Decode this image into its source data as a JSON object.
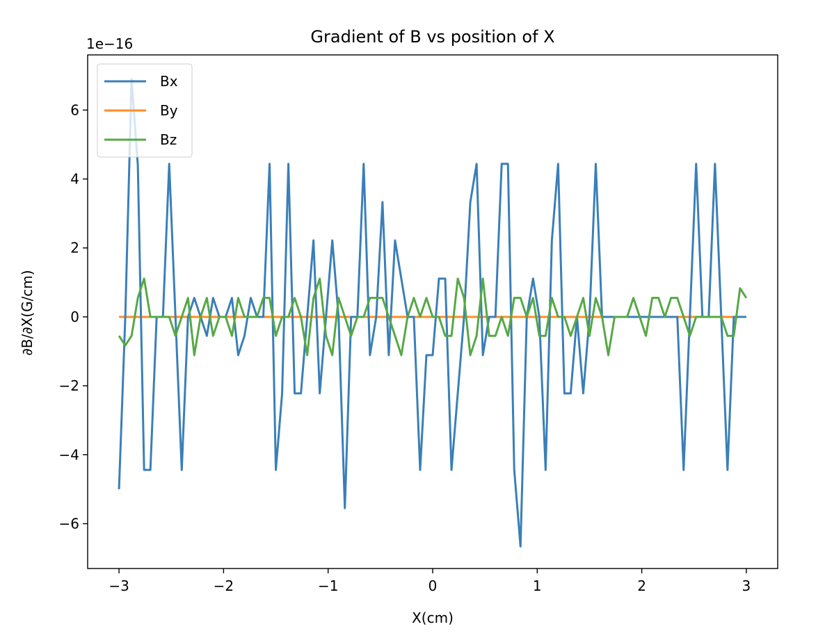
{
  "chart_data": {
    "type": "line",
    "title": "Gradient of B vs position of X",
    "xlabel": "X(cm)",
    "ylabel": "∂B/∂X(G/cm)",
    "offset_text": "1e−16",
    "xlim": [
      -3.3,
      3.3
    ],
    "ylim": [
      -7.3,
      7.6
    ],
    "xticks": [
      -3,
      -2,
      -1,
      0,
      1,
      2,
      3
    ],
    "xtick_labels": [
      "−3",
      "−2",
      "−1",
      "0",
      "1",
      "2",
      "3"
    ],
    "yticks": [
      -6,
      -4,
      -2,
      0,
      2,
      4,
      6
    ],
    "ytick_labels": [
      "−6",
      "−4",
      "−2",
      "0",
      "2",
      "4",
      "6"
    ],
    "grid": false,
    "legend_position": "upper-left",
    "x": [
      -3.0,
      -2.94,
      -2.88,
      -2.82,
      -2.76,
      -2.7,
      -2.64,
      -2.58,
      -2.52,
      -2.46,
      -2.4,
      -2.34,
      -2.28,
      -2.22,
      -2.16,
      -2.1,
      -2.04,
      -1.98,
      -1.92,
      -1.86,
      -1.8,
      -1.74,
      -1.68,
      -1.62,
      -1.56,
      -1.5,
      -1.44,
      -1.38,
      -1.32,
      -1.26,
      -1.2,
      -1.14,
      -1.08,
      -1.02,
      -0.96,
      -0.9,
      -0.84,
      -0.78,
      -0.72,
      -0.66,
      -0.6,
      -0.54,
      -0.48,
      -0.42,
      -0.36,
      -0.3,
      -0.24,
      -0.18,
      -0.12,
      -0.06,
      0.0,
      0.06,
      0.12,
      0.18,
      0.24,
      0.3,
      0.36,
      0.42,
      0.48,
      0.54,
      0.6,
      0.66,
      0.72,
      0.78,
      0.84,
      0.9,
      0.96,
      1.02,
      1.08,
      1.14,
      1.2,
      1.26,
      1.32,
      1.38,
      1.44,
      1.5,
      1.56,
      1.62,
      1.68,
      1.74,
      1.8,
      1.86,
      1.92,
      1.98,
      2.04,
      2.1,
      2.16,
      2.22,
      2.28,
      2.34,
      2.4,
      2.46,
      2.52,
      2.58,
      2.64,
      2.7,
      2.76,
      2.82,
      2.88,
      2.94,
      3.0
    ],
    "series": [
      {
        "name": "Bx",
        "color": "#3a7fb8",
        "values": [
          -5.0,
          0.0,
          6.9,
          4.4,
          -4.44,
          -4.44,
          0.0,
          0.0,
          4.44,
          0.0,
          -4.44,
          0.0,
          0.55,
          0.0,
          -0.55,
          0.55,
          0.0,
          0.0,
          0.55,
          -1.11,
          -0.55,
          0.55,
          0.0,
          0.0,
          4.44,
          -4.44,
          -2.22,
          4.44,
          -2.22,
          -2.22,
          0.0,
          2.22,
          -2.22,
          0.0,
          2.22,
          0.0,
          -5.55,
          0.0,
          0.0,
          4.44,
          -1.11,
          0.0,
          3.33,
          -1.11,
          2.22,
          1.11,
          0.0,
          0.0,
          -4.44,
          -1.11,
          -1.11,
          1.11,
          1.11,
          -4.44,
          -2.22,
          0.0,
          3.33,
          4.44,
          -1.11,
          0.0,
          0.0,
          4.44,
          4.44,
          -4.44,
          -6.66,
          0.0,
          1.11,
          0.0,
          -4.44,
          2.22,
          4.44,
          -2.22,
          -2.22,
          0.0,
          -2.22,
          0.0,
          4.44,
          0.0,
          0.0,
          0.0,
          0.0,
          0.0,
          0.0,
          0.0,
          0.0,
          0.0,
          0.0,
          0.0,
          0.0,
          0.0,
          -4.44,
          0.0,
          4.44,
          0.0,
          0.0,
          4.44,
          0.0,
          -4.44,
          0.0,
          0.0,
          0.0
        ]
      },
      {
        "name": "By",
        "color": "#ff8c27",
        "values": [
          0.0,
          0.0,
          0.0,
          0.0,
          0.0,
          0.0,
          0.0,
          0.0,
          0.0,
          0.0,
          0.0,
          0.0,
          0.0,
          0.0,
          0.0,
          0.0,
          0.0,
          0.0,
          0.0,
          0.0,
          0.0,
          0.0,
          0.0,
          0.0,
          0.0,
          0.0,
          0.0,
          0.0,
          0.0,
          0.0,
          0.0,
          0.0,
          0.0,
          0.0,
          0.0,
          0.0,
          0.0,
          0.0,
          0.0,
          0.0,
          0.0,
          0.0,
          0.0,
          0.0,
          0.0,
          0.0,
          0.0,
          0.0,
          0.0,
          0.0,
          0.0,
          0.0,
          0.0,
          0.0,
          0.0,
          0.0,
          0.0,
          0.0,
          0.0,
          0.0,
          0.0,
          0.0,
          0.0,
          0.0,
          0.0,
          0.0,
          0.0,
          0.0,
          0.0,
          0.0,
          0.0,
          0.0,
          0.0,
          0.0,
          0.0,
          0.0,
          0.0,
          0.0,
          0.0,
          0.0,
          0.0,
          0.0,
          0.0,
          0.0,
          0.0,
          0.0,
          0.0,
          0.0,
          0.0,
          0.0,
          0.0,
          0.0,
          0.0,
          0.0,
          0.0,
          0.0,
          0.0,
          0.0,
          0.0,
          0.0,
          0.0
        ]
      },
      {
        "name": "Bz",
        "color": "#56a845",
        "values": [
          -0.55,
          -0.83,
          -0.55,
          0.55,
          1.11,
          0.0,
          0.0,
          0.0,
          0.0,
          -0.55,
          0.0,
          0.55,
          -1.11,
          0.0,
          0.55,
          -0.55,
          0.0,
          0.0,
          -0.55,
          0.55,
          0.0,
          0.0,
          0.0,
          0.55,
          0.55,
          -0.55,
          0.0,
          0.0,
          0.55,
          0.0,
          -1.11,
          0.55,
          1.11,
          -0.55,
          -1.11,
          0.55,
          0.0,
          -0.55,
          0.0,
          0.0,
          0.55,
          0.55,
          0.55,
          0.0,
          -0.55,
          -1.11,
          0.0,
          0.55,
          0.0,
          0.55,
          0.0,
          0.0,
          -0.55,
          -0.55,
          1.11,
          0.55,
          -1.11,
          -0.55,
          1.11,
          -0.55,
          -0.55,
          0.0,
          -0.55,
          0.55,
          0.55,
          0.0,
          0.55,
          -0.55,
          -0.55,
          0.55,
          0.0,
          0.0,
          -0.55,
          0.0,
          0.55,
          -0.55,
          0.55,
          0.0,
          -1.11,
          0.0,
          0.0,
          0.0,
          0.55,
          0.0,
          -0.55,
          0.55,
          0.55,
          0.0,
          0.55,
          0.55,
          0.0,
          -0.55,
          0.0,
          0.0,
          0.0,
          0.0,
          0.0,
          -0.55,
          -0.55,
          0.83,
          0.55
        ]
      }
    ]
  }
}
